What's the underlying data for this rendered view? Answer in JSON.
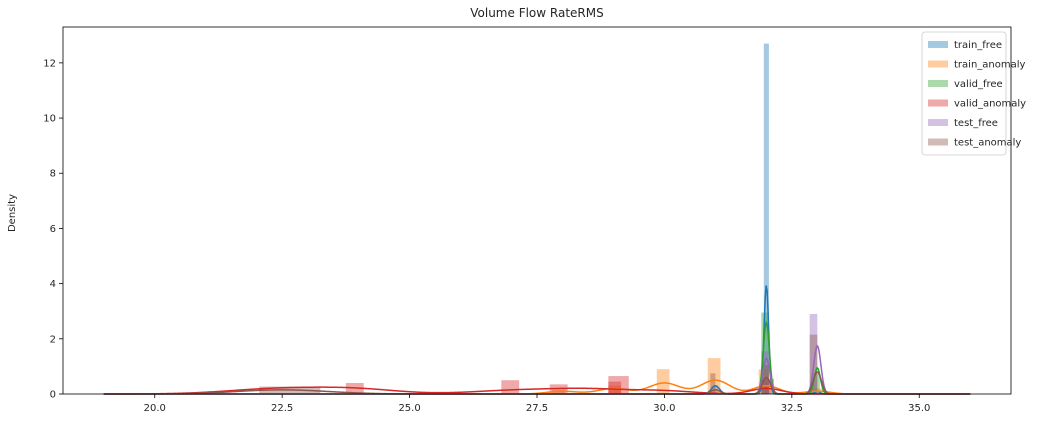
{
  "chart_data": {
    "type": "histogram-kde",
    "title": "Volume Flow RateRMS",
    "xlabel": "",
    "ylabel": "Density",
    "xlim": [
      18.2,
      36.8
    ],
    "ylim": [
      0,
      13.3
    ],
    "x_ticks": [
      20.0,
      22.5,
      25.0,
      27.5,
      30.0,
      32.5,
      35.0
    ],
    "x_tick_labels": [
      "20.0",
      "22.5",
      "25.0",
      "27.5",
      "30.0",
      "32.5",
      "35.0"
    ],
    "y_ticks": [
      0,
      2,
      4,
      6,
      8,
      10,
      12
    ],
    "y_tick_labels": [
      "0",
      "2",
      "4",
      "6",
      "8",
      "10",
      "12"
    ],
    "legend_position": "top-right",
    "series": [
      {
        "name": "train_free",
        "color": "#1f77b4",
        "bars": [
          {
            "x0": 31.95,
            "x1": 32.05,
            "height": 12.7
          },
          {
            "x0": 30.95,
            "x1": 31.05,
            "height": 0.3
          }
        ],
        "kde": [
          [
            31.0,
            0.3,
            0.08
          ],
          [
            32.0,
            3.95,
            0.045
          ],
          [
            33.0,
            0.1,
            0.05
          ]
        ]
      },
      {
        "name": "train_anomaly",
        "color": "#ff7f0e",
        "bars": [
          {
            "x0": 27.8,
            "x1": 28.05,
            "height": 0.15
          },
          {
            "x0": 28.9,
            "x1": 29.15,
            "height": 0.3
          },
          {
            "x0": 29.85,
            "x1": 30.1,
            "height": 0.9
          },
          {
            "x0": 30.85,
            "x1": 31.1,
            "height": 1.3
          },
          {
            "x0": 31.85,
            "x1": 32.1,
            "height": 0.9
          },
          {
            "x0": 32.85,
            "x1": 33.1,
            "height": 0.2
          }
        ],
        "kde": [
          [
            28.0,
            0.1,
            0.3
          ],
          [
            29.0,
            0.2,
            0.3
          ],
          [
            30.0,
            0.4,
            0.3
          ],
          [
            31.0,
            0.5,
            0.28
          ],
          [
            32.0,
            0.3,
            0.25
          ],
          [
            33.0,
            0.1,
            0.25
          ]
        ]
      },
      {
        "name": "valid_free",
        "color": "#2ca02c",
        "bars": [
          {
            "x0": 31.9,
            "x1": 32.05,
            "height": 2.95
          },
          {
            "x0": 32.9,
            "x1": 33.05,
            "height": 0.75
          }
        ],
        "kde": [
          [
            32.0,
            2.6,
            0.06
          ],
          [
            33.0,
            0.95,
            0.06
          ]
        ]
      },
      {
        "name": "valid_anomaly",
        "color": "#d62728",
        "bars": [
          {
            "x0": 23.75,
            "x1": 24.1,
            "height": 0.4
          },
          {
            "x0": 26.8,
            "x1": 27.15,
            "height": 0.5
          },
          {
            "x0": 27.75,
            "x1": 28.1,
            "height": 0.35
          },
          {
            "x0": 28.9,
            "x1": 29.3,
            "height": 0.65
          },
          {
            "x0": 28.9,
            "x1": 29.15,
            "height": 0.45
          },
          {
            "x0": 31.9,
            "x1": 32.15,
            "height": 0.55
          }
        ],
        "kde": [
          [
            22.5,
            0.2,
            1.0
          ],
          [
            24.0,
            0.15,
            0.8
          ],
          [
            27.0,
            0.12,
            0.8
          ],
          [
            28.5,
            0.18,
            0.8
          ],
          [
            30.0,
            0.1,
            0.6
          ],
          [
            32.0,
            0.2,
            0.3
          ]
        ]
      },
      {
        "name": "test_free",
        "color": "#9467bd",
        "bars": [
          {
            "x0": 31.9,
            "x1": 32.05,
            "height": 1.55
          },
          {
            "x0": 32.85,
            "x1": 33.0,
            "height": 2.9
          }
        ],
        "kde": [
          [
            32.0,
            1.3,
            0.07
          ],
          [
            33.0,
            1.75,
            0.07
          ]
        ]
      },
      {
        "name": "test_anomaly",
        "color": "#8c564b",
        "bars": [
          {
            "x0": 22.05,
            "x1": 23.25,
            "height": 0.27
          },
          {
            "x0": 30.9,
            "x1": 31.0,
            "height": 0.75
          },
          {
            "x0": 31.9,
            "x1": 32.05,
            "height": 1.05
          },
          {
            "x0": 32.85,
            "x1": 33.0,
            "height": 2.15
          }
        ],
        "kde": [
          [
            22.5,
            0.15,
            0.9
          ],
          [
            31.0,
            0.15,
            0.1
          ],
          [
            32.0,
            0.6,
            0.08
          ],
          [
            33.0,
            0.8,
            0.08
          ]
        ]
      }
    ]
  }
}
